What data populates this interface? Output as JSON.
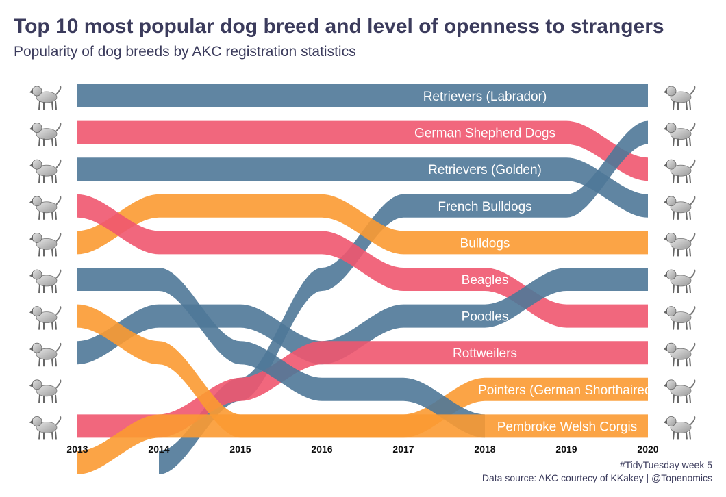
{
  "title": "Top 10 most popular dog breed and level of openness to strangers",
  "subtitle": "Popularity of dog breeds by AKC registration statistics",
  "caption": {
    "line1": "#TidyTuesday week 5",
    "line2": "Data source: AKC courtecy of KKakey | @Topenomics"
  },
  "colors": {
    "high_openness": "#f0566f",
    "medium_openness": "#4f7898",
    "low_openness": "#fb9a32"
  },
  "chart_data": {
    "type": "bump",
    "x": [
      2013,
      2014,
      2015,
      2016,
      2017,
      2018,
      2019,
      2020
    ],
    "xlabel": "",
    "ylabel": "",
    "y_reversed": true,
    "ylim": [
      1,
      10
    ],
    "grid": false,
    "legend": "none",
    "series": [
      {
        "name": "Retrievers (Labrador)",
        "color": "#4f7898",
        "ranks": [
          1,
          1,
          1,
          1,
          1,
          1,
          1,
          1
        ]
      },
      {
        "name": "German Shepherd Dogs",
        "color": "#f0566f",
        "ranks": [
          2,
          2,
          2,
          2,
          2,
          2,
          2,
          3
        ]
      },
      {
        "name": "Retrievers (Golden)",
        "color": "#4f7898",
        "ranks": [
          3,
          3,
          3,
          3,
          3,
          3,
          3,
          4
        ]
      },
      {
        "name": "French Bulldogs",
        "color": "#4f7898",
        "ranks": [
          null,
          11,
          9,
          6,
          4,
          4,
          4,
          2
        ]
      },
      {
        "name": "Bulldogs",
        "color": "#fb9a32",
        "ranks": [
          5,
          4,
          4,
          4,
          5,
          5,
          5,
          5
        ]
      },
      {
        "name": "Beagles",
        "color": "#f0566f",
        "ranks": [
          4,
          5,
          5,
          5,
          6,
          6,
          7,
          7
        ]
      },
      {
        "name": "Poodles",
        "color": "#4f7898",
        "ranks": [
          8,
          7,
          7,
          8,
          7,
          7,
          6,
          6
        ]
      },
      {
        "name": "Rottweilers",
        "color": "#f0566f",
        "ranks": [
          10,
          10,
          9,
          8,
          8,
          8,
          8,
          8
        ]
      },
      {
        "name": "Pointers (German Shorthaired)",
        "color": "#fb9a32",
        "ranks": [
          7,
          8,
          10,
          10,
          10,
          9,
          9,
          9
        ]
      },
      {
        "name": "Pembroke Welsh Corgis",
        "color": "#4f7898",
        "ranks": [
          6,
          6,
          8,
          9,
          9,
          10,
          null,
          null
        ]
      },
      {
        "name": "Pembroke Welsh Corgis",
        "color": "#fb9a32",
        "ranks": [
          11,
          10,
          10,
          10,
          10,
          10,
          10,
          10
        ]
      }
    ],
    "labels_2020": [
      "Retrievers (Labrador)",
      "German Shepherd Dogs",
      "Retrievers (Golden)",
      "French Bulldogs",
      "Bulldogs",
      "Beagles",
      "Poodles",
      "Rottweilers",
      "Pointers (German Shorthaired)",
      "Pembroke Welsh Corgis"
    ]
  }
}
